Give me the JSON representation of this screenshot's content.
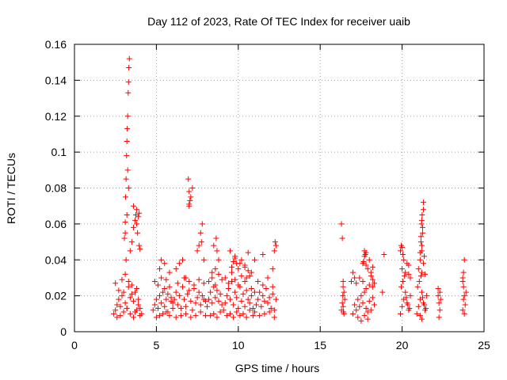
{
  "chart_data": {
    "type": "scatter",
    "title": "Day 112 of 2023, Rate Of TEC Index for receiver uaib",
    "xlabel": "GPS time / hours",
    "ylabel": "ROTI / TECUs",
    "xlim": [
      0,
      25
    ],
    "ylim": [
      0,
      0.16
    ],
    "xticks": [
      "0",
      "5",
      "10",
      "15",
      "20",
      "25"
    ],
    "yticks": [
      "0",
      "0.02",
      "0.04",
      "0.06",
      "0.08",
      "0.1",
      "0.12",
      "0.14",
      "0.16"
    ],
    "grid": true,
    "marker": "+",
    "series": [
      {
        "color": "#ff0000",
        "x": [
          2.4,
          2.5,
          2.6,
          2.7,
          2.8,
          2.9,
          3.0,
          3.1,
          3.2,
          3.3,
          3.4,
          3.5,
          3.6,
          3.7,
          3.8,
          3.9,
          4.0,
          4.1,
          2.5,
          2.7,
          2.9,
          3.1,
          3.3,
          3.5,
          3.7,
          3.9,
          2.6,
          2.8,
          3.0,
          3.2,
          3.4,
          3.6,
          3.8,
          4.0,
          3.05,
          3.1,
          3.12,
          3.15,
          3.18,
          3.2,
          3.22,
          3.25,
          3.28,
          3.3,
          3.32,
          3.35,
          3.1,
          3.2,
          3.3,
          3.25,
          3.15,
          3.4,
          3.5,
          3.6,
          3.7,
          3.75,
          3.8,
          3.85,
          3.9,
          3.95,
          4.0,
          3.6,
          3.8,
          3.95,
          4.8,
          4.9,
          5.0,
          5.1,
          5.2,
          5.3,
          5.4,
          5.5,
          5.6,
          5.7,
          5.8,
          5.9,
          6.0,
          4.9,
          5.1,
          5.3,
          5.5,
          5.7,
          5.9,
          5.0,
          5.2,
          5.4,
          5.6,
          5.8,
          5.2,
          5.5,
          5.8,
          5.3,
          5.6,
          6.0,
          6.1,
          6.2,
          6.3,
          6.4,
          6.5,
          6.6,
          6.7,
          6.8,
          6.9,
          7.0,
          7.1,
          7.2,
          7.3,
          7.4,
          7.5,
          7.6,
          7.7,
          7.8,
          7.9,
          8.0,
          6.2,
          6.5,
          6.8,
          7.1,
          7.4,
          7.7,
          8.0,
          6.3,
          6.7,
          7.0,
          7.3,
          7.6,
          7.9,
          6.2,
          6.4,
          6.6,
          6.8,
          7.0,
          7.1,
          7.2,
          7.0,
          6.95,
          7.05,
          7.0,
          7.5,
          7.6,
          7.7,
          7.8,
          7.75,
          7.9,
          8.1,
          8.2,
          8.3,
          8.4,
          8.5,
          8.6,
          8.7,
          8.8,
          8.9,
          9.0,
          8.2,
          8.4,
          8.6,
          8.8,
          9.0,
          8.3,
          8.5,
          8.7,
          8.9,
          8.6,
          8.7,
          8.65,
          8.8,
          8.5,
          8.4,
          9.1,
          9.2,
          9.3,
          9.4,
          9.5,
          9.6,
          9.7,
          9.8,
          9.9,
          10.0,
          10.1,
          10.2,
          10.3,
          10.4,
          10.5,
          10.6,
          10.7,
          10.8,
          10.9,
          11.0,
          9.2,
          9.4,
          9.6,
          9.8,
          10.0,
          10.2,
          10.4,
          10.6,
          10.8,
          11.0,
          9.3,
          9.5,
          9.7,
          9.9,
          10.1,
          10.3,
          10.5,
          10.7,
          10.9,
          9.6,
          9.7,
          9.8,
          9.9,
          10.0,
          10.2,
          10.4,
          10.6,
          10.8,
          10.5,
          9.5,
          9.8,
          10.1,
          10.4,
          10.7,
          11.1,
          11.2,
          11.3,
          11.4,
          11.5,
          11.6,
          11.7,
          11.8,
          11.9,
          12.0,
          12.1,
          12.2,
          12.3,
          11.2,
          11.5,
          11.8,
          12.1,
          11.3,
          11.6,
          11.9,
          12.2,
          12.2,
          12.25,
          12.3,
          12.1,
          11.5,
          11.0,
          16.3,
          16.35,
          16.4,
          16.45,
          16.5,
          16.4,
          16.3,
          16.35,
          16.42,
          16.38,
          16.4,
          16.45,
          17.0,
          17.1,
          17.2,
          17.3,
          17.4,
          17.5,
          17.6,
          17.7,
          17.8,
          17.9,
          18.0,
          18.1,
          18.2,
          18.3,
          17.2,
          17.4,
          17.6,
          17.8,
          18.0,
          18.2,
          17.3,
          17.5,
          17.7,
          17.9,
          17.6,
          17.7,
          17.8,
          17.9,
          18.0,
          18.1,
          18.2,
          17.7,
          17.75,
          17.65,
          17.8,
          17.1,
          17.0,
          16.9,
          18.3,
          18.2,
          18.1,
          18.9,
          18.8,
          19.9,
          20.0,
          20.1,
          20.2,
          20.3,
          20.4,
          20.5,
          19.95,
          20.05,
          20.15,
          20.25,
          20.35,
          20.45,
          20.0,
          20.2,
          20.4,
          20.1,
          20.3,
          19.9,
          19.95,
          20.0,
          20.05,
          20.4,
          20.5,
          20.9,
          21.0,
          21.1,
          21.2,
          21.3,
          21.4,
          21.5,
          20.95,
          21.05,
          21.15,
          21.25,
          21.35,
          21.45,
          21.0,
          21.2,
          21.4,
          21.1,
          21.3,
          21.2,
          21.15,
          21.25,
          21.18,
          21.22,
          21.3,
          21.1,
          21.35,
          21.2,
          21.15,
          21.25,
          21.2,
          21.3,
          21.1,
          21.2,
          22.2,
          22.25,
          22.3,
          22.35,
          22.2,
          22.3,
          22.25,
          23.7,
          23.75,
          23.8,
          23.85,
          23.7,
          23.8,
          23.75,
          23.9,
          23.7,
          23.8,
          23.75
        ],
        "y": [
          0.01,
          0.012,
          0.015,
          0.018,
          0.014,
          0.02,
          0.022,
          0.016,
          0.013,
          0.025,
          0.019,
          0.021,
          0.017,
          0.011,
          0.024,
          0.015,
          0.013,
          0.01,
          0.027,
          0.023,
          0.029,
          0.032,
          0.028,
          0.026,
          0.022,
          0.018,
          0.008,
          0.009,
          0.011,
          0.013,
          0.01,
          0.008,
          0.012,
          0.009,
          0.052,
          0.061,
          0.075,
          0.085,
          0.098,
          0.106,
          0.113,
          0.12,
          0.133,
          0.139,
          0.147,
          0.152,
          0.055,
          0.065,
          0.08,
          0.09,
          0.04,
          0.045,
          0.05,
          0.058,
          0.062,
          0.065,
          0.06,
          0.055,
          0.064,
          0.048,
          0.046,
          0.07,
          0.068,
          0.066,
          0.012,
          0.015,
          0.018,
          0.013,
          0.02,
          0.016,
          0.022,
          0.014,
          0.018,
          0.011,
          0.025,
          0.019,
          0.013,
          0.028,
          0.026,
          0.03,
          0.024,
          0.021,
          0.017,
          0.008,
          0.009,
          0.01,
          0.011,
          0.009,
          0.035,
          0.038,
          0.033,
          0.04,
          0.029,
          0.016,
          0.018,
          0.022,
          0.015,
          0.02,
          0.013,
          0.025,
          0.018,
          0.014,
          0.021,
          0.023,
          0.017,
          0.012,
          0.024,
          0.016,
          0.019,
          0.022,
          0.015,
          0.02,
          0.018,
          0.017,
          0.008,
          0.009,
          0.01,
          0.008,
          0.009,
          0.011,
          0.009,
          0.027,
          0.03,
          0.028,
          0.026,
          0.029,
          0.027,
          0.035,
          0.038,
          0.04,
          0.03,
          0.071,
          0.075,
          0.08,
          0.078,
          0.085,
          0.073,
          0.07,
          0.045,
          0.048,
          0.055,
          0.06,
          0.05,
          0.04,
          0.014,
          0.018,
          0.022,
          0.016,
          0.025,
          0.019,
          0.023,
          0.017,
          0.021,
          0.015,
          0.028,
          0.03,
          0.026,
          0.032,
          0.029,
          0.009,
          0.01,
          0.008,
          0.011,
          0.035,
          0.045,
          0.052,
          0.04,
          0.048,
          0.033,
          0.012,
          0.016,
          0.02,
          0.024,
          0.018,
          0.028,
          0.015,
          0.022,
          0.019,
          0.013,
          0.025,
          0.017,
          0.021,
          0.014,
          0.023,
          0.018,
          0.016,
          0.02,
          0.013,
          0.011,
          0.03,
          0.027,
          0.033,
          0.029,
          0.026,
          0.031,
          0.028,
          0.034,
          0.024,
          0.022,
          0.009,
          0.01,
          0.008,
          0.011,
          0.009,
          0.01,
          0.008,
          0.012,
          0.009,
          0.036,
          0.039,
          0.041,
          0.038,
          0.035,
          0.04,
          0.037,
          0.044,
          0.033,
          0.03,
          0.045,
          0.042,
          0.038,
          0.036,
          0.031,
          0.015,
          0.018,
          0.022,
          0.014,
          0.02,
          0.017,
          0.024,
          0.016,
          0.019,
          0.013,
          0.021,
          0.012,
          0.018,
          0.028,
          0.026,
          0.03,
          0.025,
          0.009,
          0.01,
          0.011,
          0.008,
          0.045,
          0.05,
          0.048,
          0.035,
          0.043,
          0.04,
          0.06,
          0.052,
          0.028,
          0.022,
          0.018,
          0.014,
          0.012,
          0.016,
          0.011,
          0.02,
          0.025,
          0.01,
          0.01,
          0.015,
          0.012,
          0.018,
          0.014,
          0.02,
          0.016,
          0.022,
          0.013,
          0.011,
          0.017,
          0.012,
          0.019,
          0.015,
          0.027,
          0.03,
          0.028,
          0.024,
          0.026,
          0.029,
          0.008,
          0.006,
          0.009,
          0.007,
          0.038,
          0.042,
          0.044,
          0.035,
          0.04,
          0.033,
          0.036,
          0.045,
          0.043,
          0.039,
          0.037,
          0.03,
          0.033,
          0.028,
          0.027,
          0.025,
          0.031,
          0.043,
          0.022,
          0.01,
          0.014,
          0.018,
          0.022,
          0.016,
          0.012,
          0.02,
          0.025,
          0.028,
          0.031,
          0.019,
          0.015,
          0.013,
          0.035,
          0.033,
          0.032,
          0.04,
          0.038,
          0.045,
          0.048,
          0.047,
          0.043,
          0.037,
          0.03,
          0.01,
          0.014,
          0.018,
          0.022,
          0.016,
          0.012,
          0.02,
          0.025,
          0.028,
          0.031,
          0.019,
          0.015,
          0.013,
          0.035,
          0.033,
          0.032,
          0.04,
          0.038,
          0.045,
          0.05,
          0.055,
          0.06,
          0.065,
          0.072,
          0.044,
          0.042,
          0.048,
          0.053,
          0.058,
          0.062,
          0.068,
          0.009,
          0.007,
          0.02,
          0.016,
          0.012,
          0.018,
          0.024,
          0.022,
          0.008,
          0.03,
          0.025,
          0.02,
          0.015,
          0.012,
          0.01,
          0.018,
          0.022,
          0.028,
          0.04,
          0.033
        ]
      }
    ]
  }
}
